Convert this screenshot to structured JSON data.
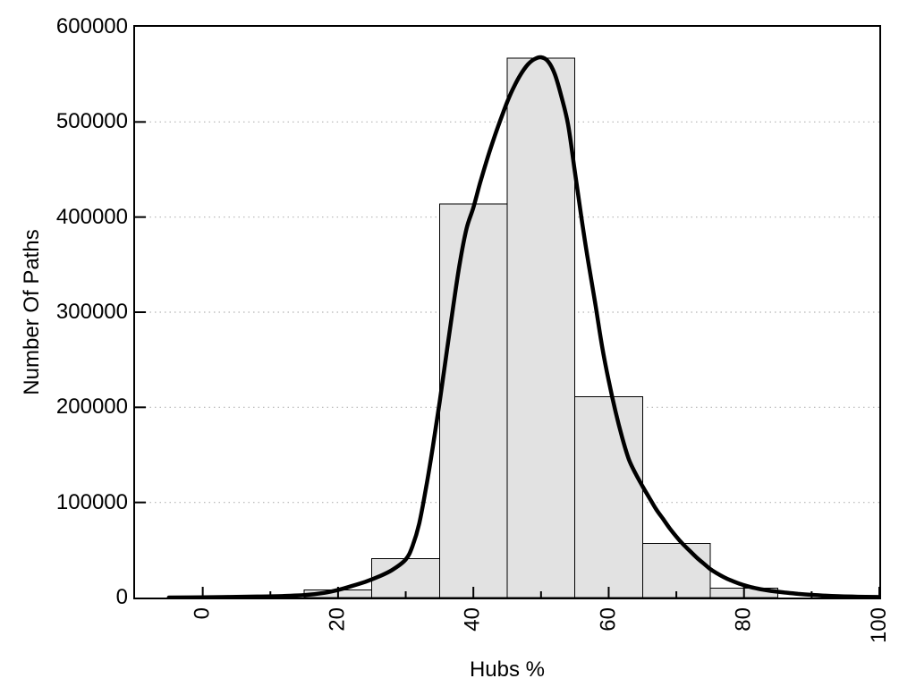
{
  "chart_data": {
    "type": "bar",
    "subtype": "histogram-with-fit-curve",
    "title": "",
    "xlabel": "Hubs %",
    "ylabel": "Number Of Paths",
    "xlim": [
      -10,
      100
    ],
    "ylim": [
      0,
      600000
    ],
    "x_major_ticks": [
      0,
      20,
      40,
      60,
      80,
      100
    ],
    "x_minor_ticks": [
      10,
      30,
      50,
      70,
      90
    ],
    "y_major_ticks": [
      0,
      100000,
      200000,
      300000,
      400000,
      500000,
      600000
    ],
    "grid": {
      "horizontal_dotted": true,
      "vertical": false
    },
    "legend_position": "none",
    "histogram": {
      "bin_width": 10,
      "bin_edges": [
        15,
        25,
        35,
        45,
        55,
        65,
        75,
        85
      ],
      "bin_centers": [
        20,
        30,
        40,
        50,
        60,
        70,
        80
      ],
      "counts": [
        8000,
        41000,
        414000,
        567000,
        211000,
        57000,
        10000
      ]
    },
    "fit_curve": {
      "name": "density-fit",
      "points": [
        [
          -5,
          0
        ],
        [
          0,
          300
        ],
        [
          4,
          600
        ],
        [
          8,
          1000
        ],
        [
          12,
          1700
        ],
        [
          15,
          2500
        ],
        [
          18,
          5000
        ],
        [
          20,
          8000
        ],
        [
          22,
          12000
        ],
        [
          24,
          16500
        ],
        [
          26,
          22000
        ],
        [
          28,
          29000
        ],
        [
          30,
          40000
        ],
        [
          31,
          54000
        ],
        [
          32,
          78000
        ],
        [
          33,
          115000
        ],
        [
          34,
          158000
        ],
        [
          35,
          205000
        ],
        [
          36,
          255000
        ],
        [
          37,
          305000
        ],
        [
          38,
          352000
        ],
        [
          39,
          388000
        ],
        [
          40,
          410000
        ],
        [
          41,
          436000
        ],
        [
          42,
          460000
        ],
        [
          43,
          482000
        ],
        [
          44,
          502000
        ],
        [
          45,
          521000
        ],
        [
          46,
          537000
        ],
        [
          47,
          550000
        ],
        [
          48,
          560000
        ],
        [
          49,
          566000
        ],
        [
          50,
          568000
        ],
        [
          51,
          564000
        ],
        [
          52,
          551000
        ],
        [
          53,
          527000
        ],
        [
          54,
          497000
        ],
        [
          55,
          448000
        ],
        [
          56,
          398000
        ],
        [
          57,
          352000
        ],
        [
          58,
          310000
        ],
        [
          59,
          265000
        ],
        [
          60,
          228000
        ],
        [
          61,
          196000
        ],
        [
          62,
          168000
        ],
        [
          63,
          145000
        ],
        [
          64,
          130000
        ],
        [
          65,
          117000
        ],
        [
          66,
          105000
        ],
        [
          67,
          93000
        ],
        [
          68,
          83000
        ],
        [
          69,
          73000
        ],
        [
          70,
          64000
        ],
        [
          71,
          56000
        ],
        [
          72,
          49000
        ],
        [
          73,
          42000
        ],
        [
          74,
          36000
        ],
        [
          75,
          30000
        ],
        [
          76,
          25500
        ],
        [
          77,
          21500
        ],
        [
          78,
          18200
        ],
        [
          79,
          15400
        ],
        [
          80,
          13000
        ],
        [
          81,
          11000
        ],
        [
          82,
          9400
        ],
        [
          83,
          8100
        ],
        [
          84,
          7000
        ],
        [
          85,
          6100
        ],
        [
          86,
          5300
        ],
        [
          87,
          4600
        ],
        [
          88,
          3900
        ],
        [
          89,
          3300
        ],
        [
          90,
          2800
        ],
        [
          92,
          2000
        ],
        [
          94,
          1400
        ],
        [
          96,
          1000
        ],
        [
          98,
          700
        ],
        [
          100,
          500
        ]
      ]
    },
    "colors": {
      "bar_fill": "#e2e2e2",
      "bar_border": "#000000",
      "curve": "#000000",
      "grid": "#b3b3b3",
      "axis": "#000000",
      "text": "#000000",
      "background": "#ffffff"
    }
  }
}
